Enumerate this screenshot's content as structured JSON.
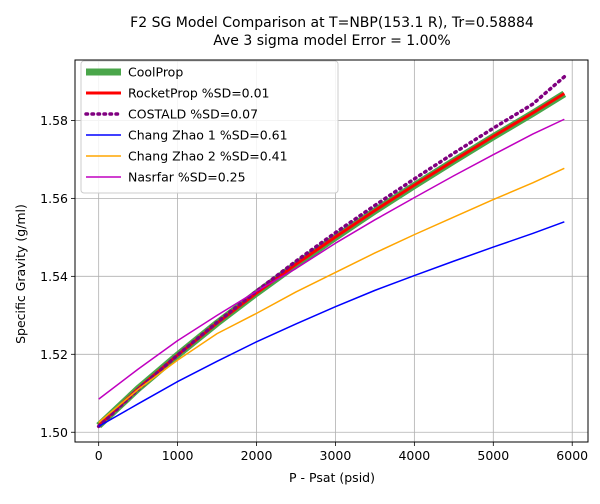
{
  "chart_data": {
    "type": "line",
    "title": "F2 SG Model Comparison at T=NBP(153.1 R), Tr=0.58884",
    "subtitle": "Ave 3 sigma model Error = 1.00%",
    "xlabel": "P - Psat (psid)",
    "ylabel": "Specific Gravity (g/ml)",
    "xlim": [
      -300,
      6200
    ],
    "ylim": [
      1.4975,
      1.5955
    ],
    "xticks": [
      0,
      1000,
      2000,
      3000,
      4000,
      5000,
      6000
    ],
    "yticks": [
      1.5,
      1.52,
      1.54,
      1.56,
      1.58
    ],
    "ytick_labels": [
      "1.50",
      "1.52",
      "1.54",
      "1.56",
      "1.58"
    ],
    "grid": true,
    "legend_position": "top-left",
    "series": [
      {
        "name": "CoolProp",
        "color": "#4aa64a",
        "style": "solid-thick",
        "x": [
          0,
          500,
          1000,
          1500,
          2000,
          2500,
          3000,
          3500,
          4000,
          4500,
          5000,
          5500,
          5900
        ],
        "y": [
          1.5017,
          1.5112,
          1.5198,
          1.528,
          1.5357,
          1.543,
          1.55,
          1.5568,
          1.5633,
          1.5696,
          1.5758,
          1.5818,
          1.5868
        ]
      },
      {
        "name": "RocketProp %SD=0.01",
        "color": "#ff0000",
        "style": "solid",
        "x": [
          0,
          500,
          1000,
          1500,
          2000,
          2500,
          3000,
          3500,
          4000,
          4500,
          5000,
          5500,
          5900
        ],
        "y": [
          1.5017,
          1.5112,
          1.5198,
          1.528,
          1.5357,
          1.5431,
          1.5501,
          1.5569,
          1.5634,
          1.5697,
          1.5759,
          1.5819,
          1.5869
        ]
      },
      {
        "name": "COSTALD %SD=0.07",
        "color": "#800080",
        "style": "dotted",
        "x": [
          0,
          500,
          1000,
          1500,
          2000,
          2500,
          3000,
          3500,
          4000,
          4500,
          5000,
          5500,
          5900
        ],
        "y": [
          1.5015,
          1.511,
          1.5198,
          1.5282,
          1.5362,
          1.5439,
          1.5512,
          1.5582,
          1.565,
          1.5716,
          1.578,
          1.5842,
          1.5912
        ]
      },
      {
        "name": "Chang Zhao 1 %SD=0.61",
        "color": "#0000ff",
        "style": "solid",
        "x": [
          0,
          500,
          1000,
          1500,
          2000,
          2500,
          3000,
          3500,
          4000,
          4500,
          5000,
          5500,
          5900
        ],
        "y": [
          1.5015,
          1.5073,
          1.513,
          1.5182,
          1.5232,
          1.5278,
          1.5322,
          1.5364,
          1.5402,
          1.5439,
          1.5475,
          1.551,
          1.554
        ]
      },
      {
        "name": "Chang Zhao 2 %SD=0.41",
        "color": "#ffa500",
        "style": "solid",
        "x": [
          0,
          500,
          1000,
          1500,
          2000,
          2500,
          3000,
          3500,
          4000,
          4500,
          5000,
          5500,
          5900
        ],
        "y": [
          1.5025,
          1.511,
          1.5185,
          1.5253,
          1.5305,
          1.536,
          1.541,
          1.546,
          1.5507,
          1.5552,
          1.5597,
          1.564,
          1.5677
        ]
      },
      {
        "name": "Nasrfar %SD=0.25",
        "color": "#c000c0",
        "style": "solid",
        "x": [
          0,
          500,
          1000,
          1500,
          2000,
          2500,
          3000,
          3500,
          4000,
          4500,
          5000,
          5500,
          5900
        ],
        "y": [
          1.5085,
          1.5162,
          1.5235,
          1.53,
          1.5362,
          1.542,
          1.5485,
          1.5545,
          1.5602,
          1.5658,
          1.5712,
          1.5765,
          1.5803
        ]
      }
    ]
  }
}
